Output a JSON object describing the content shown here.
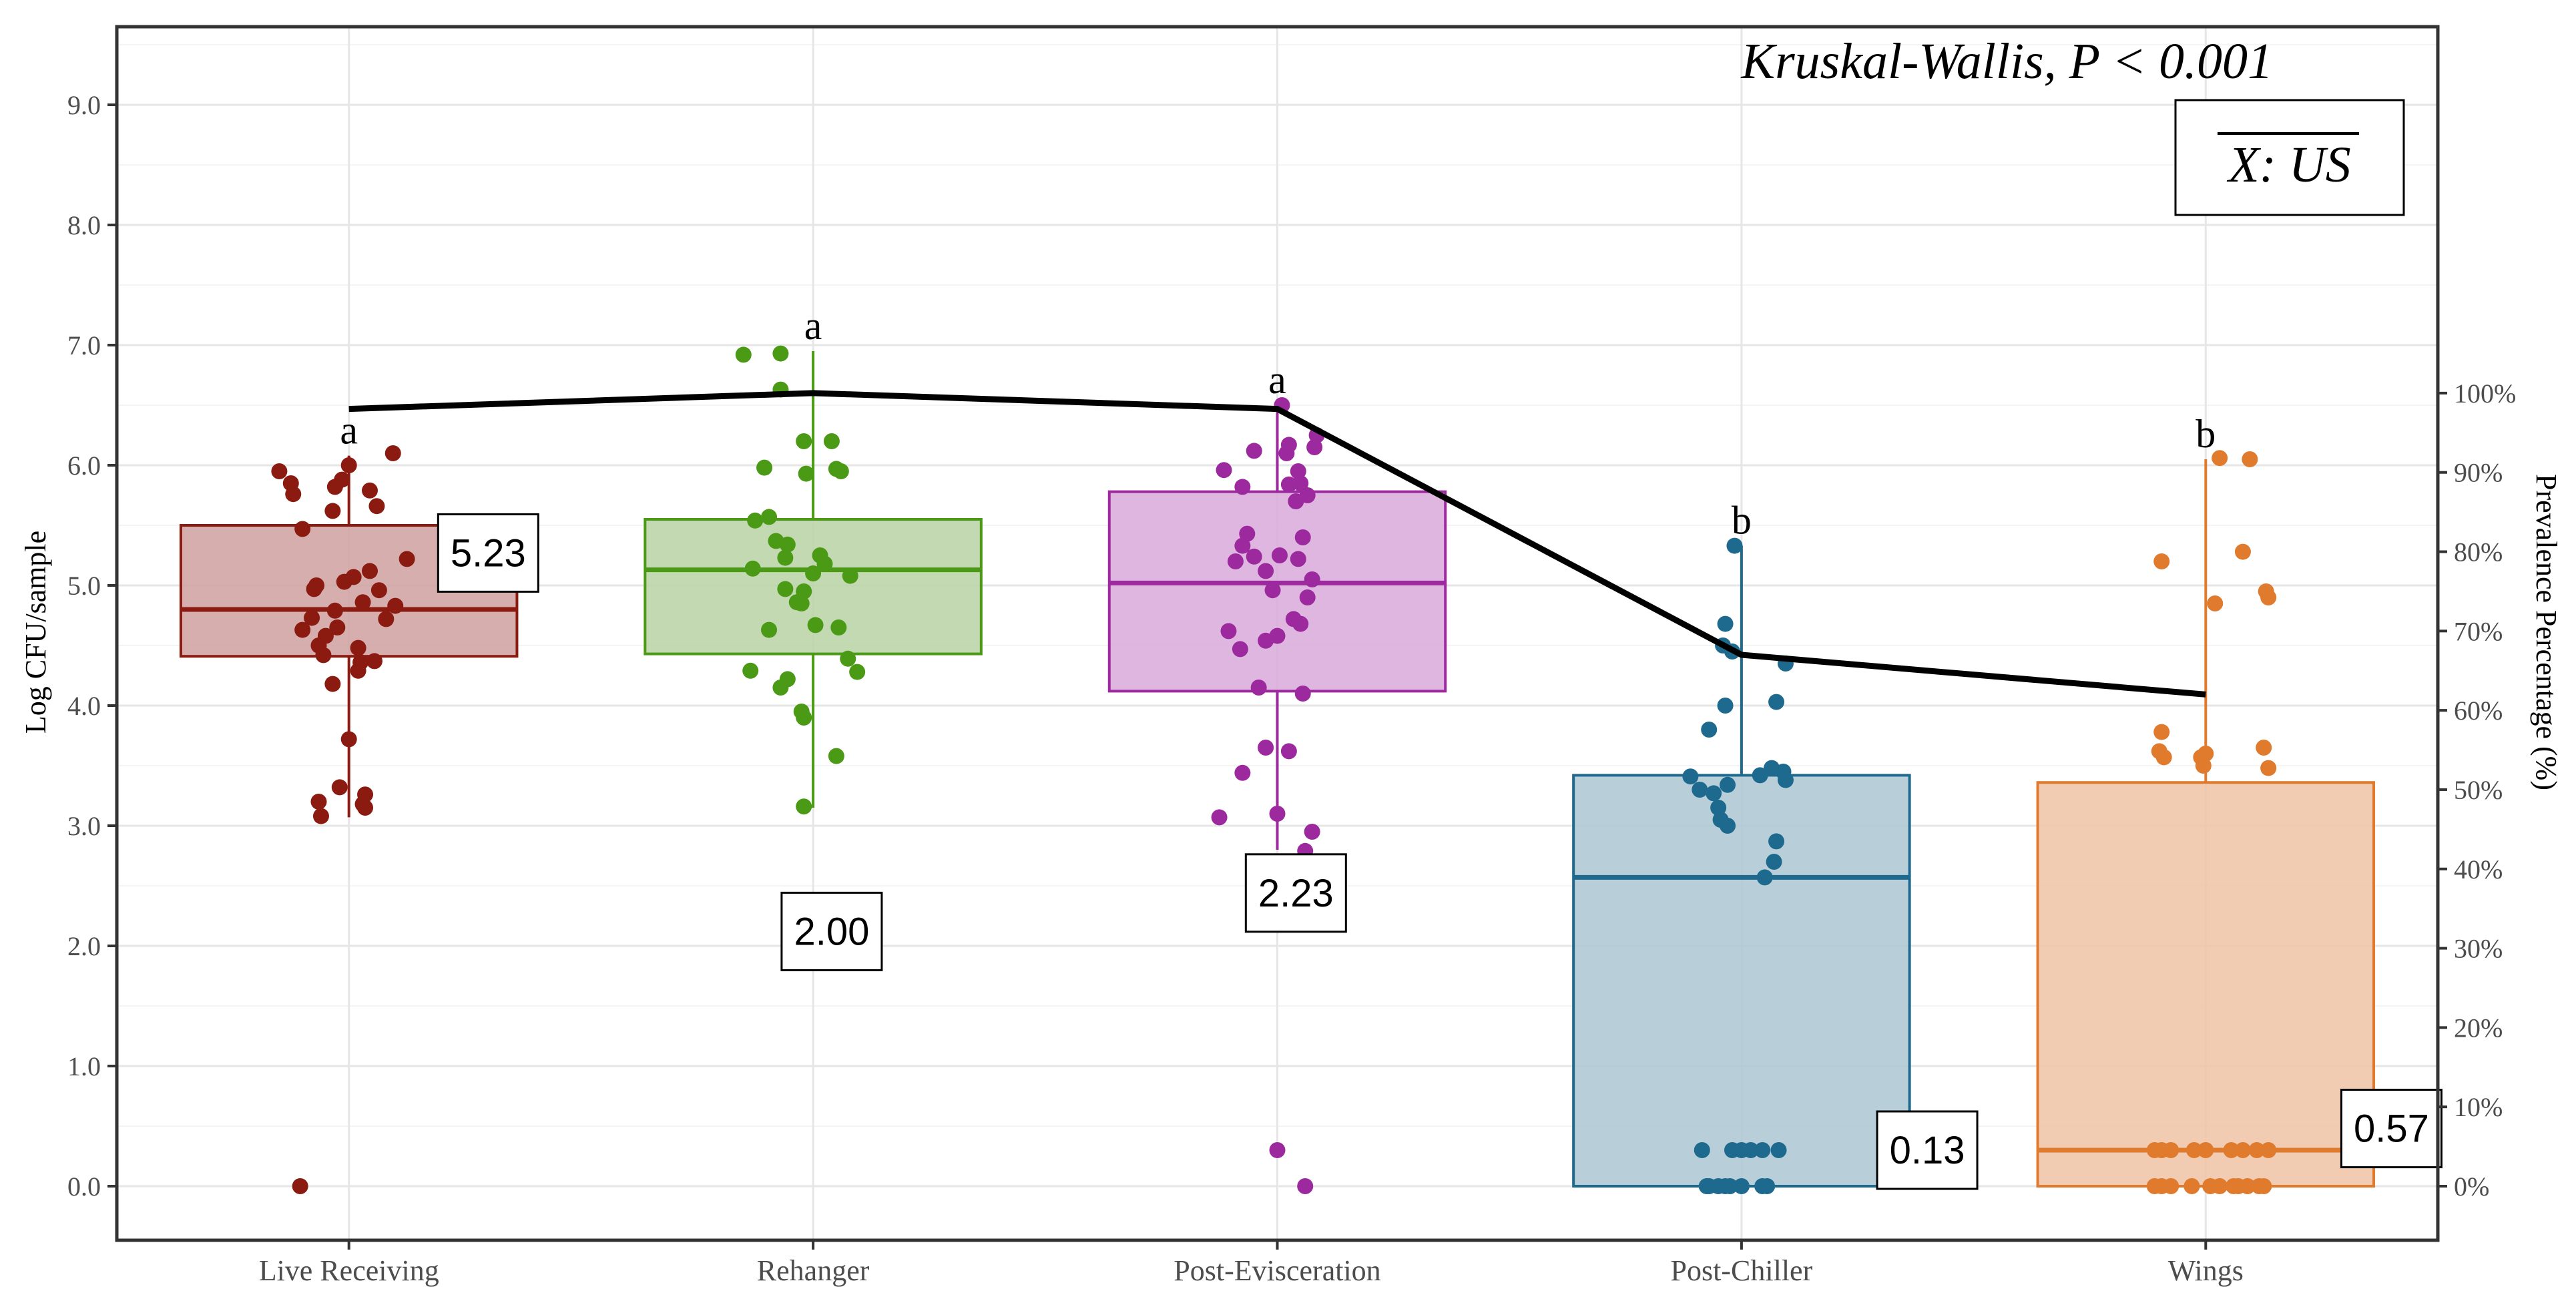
{
  "chart_data": {
    "type": "box",
    "title": "",
    "annotation": "Kruskal-Wallis, P < 0.001",
    "legend_label": "X: US",
    "ylabel_left": "Log CFU/sample",
    "ylabel_right": "Prevalence Percentage (%)",
    "ylim_left": [
      -0.45,
      9.65
    ],
    "ylim_right": [
      -6.818,
      146.2
    ],
    "yticks_left": [
      "0.0",
      "1.0",
      "2.0",
      "3.0",
      "4.0",
      "5.0",
      "6.0",
      "7.0",
      "8.0",
      "9.0"
    ],
    "yticks_right": [
      "0%",
      "10%",
      "20%",
      "30%",
      "40%",
      "50%",
      "60%",
      "70%",
      "80%",
      "90%",
      "100%"
    ],
    "categories": [
      "Live Receiving",
      "Rehanger",
      "Post-Evisceration",
      "Post-Chiller",
      "Wings"
    ],
    "colors": [
      "#8B1A10",
      "#4A9A16",
      "#9C2A9E",
      "#1E6A8E",
      "#E07A2C"
    ],
    "fills": [
      "#CFA0A0",
      "#B8D2A5",
      "#D9A9D9",
      "#ABC7D4",
      "#EEC3A6"
    ],
    "boxes": [
      {
        "name": "Live Receiving",
        "q1": 4.41,
        "median": 4.8,
        "q3": 5.5,
        "whisker_low": 3.07,
        "whisker_high": 6.08,
        "letter": "a",
        "label": "5.23",
        "prevalence": 98
      },
      {
        "name": "Rehanger",
        "q1": 4.43,
        "median": 5.13,
        "q3": 5.55,
        "whisker_low": 3.15,
        "whisker_high": 6.95,
        "letter": "a",
        "label": "2.00",
        "prevalence": 100
      },
      {
        "name": "Post-Evisceration",
        "q1": 4.12,
        "median": 5.02,
        "q3": 5.78,
        "whisker_low": 2.8,
        "whisker_high": 6.5,
        "letter": "a",
        "label": "2.23",
        "prevalence": 98
      },
      {
        "name": "Post-Chiller",
        "q1": 0.0,
        "median": 2.57,
        "q3": 3.42,
        "whisker_low": 0.0,
        "whisker_high": 5.33,
        "letter": "b",
        "label": "0.13",
        "prevalence": 67
      },
      {
        "name": "Wings",
        "q1": 0.0,
        "median": 0.3,
        "q3": 3.36,
        "whisker_low": 0.0,
        "whisker_high": 6.05,
        "letter": "b",
        "label": "0.57",
        "prevalence": 62
      }
    ],
    "points": [
      [
        [
          -0.3,
          5.95
        ],
        [
          -0.25,
          5.85
        ],
        [
          -0.24,
          5.76
        ],
        [
          0.0,
          6.0
        ],
        [
          0.09,
          5.79
        ],
        [
          0.19,
          6.1
        ],
        [
          -0.2,
          5.47
        ],
        [
          -0.14,
          5.0
        ],
        [
          -0.07,
          5.62
        ],
        [
          -0.06,
          5.82
        ],
        [
          -0.03,
          5.88
        ],
        [
          0.12,
          5.66
        ],
        [
          0.25,
          5.22
        ],
        [
          -0.16,
          4.73
        ],
        [
          -0.13,
          4.5
        ],
        [
          -0.11,
          4.42
        ],
        [
          -0.05,
          4.65
        ],
        [
          -0.02,
          5.03
        ],
        [
          0.02,
          5.07
        ],
        [
          0.06,
          4.86
        ],
        [
          0.09,
          5.12
        ],
        [
          0.13,
          4.96
        ],
        [
          0.2,
          4.83
        ],
        [
          0.16,
          4.72
        ],
        [
          -0.2,
          4.63
        ],
        [
          -0.15,
          4.97
        ],
        [
          -0.1,
          4.58
        ],
        [
          -0.06,
          4.79
        ],
        [
          0.04,
          4.48
        ],
        [
          0.11,
          4.37
        ],
        [
          -0.07,
          4.18
        ],
        [
          0.04,
          4.29
        ],
        [
          0.05,
          4.36
        ],
        [
          0.0,
          3.72
        ],
        [
          0.07,
          3.26
        ],
        [
          -0.04,
          3.32
        ],
        [
          0.06,
          3.18
        ],
        [
          -0.13,
          3.2
        ],
        [
          -0.12,
          3.08
        ],
        [
          0.07,
          3.15
        ],
        [
          -0.21,
          0.0
        ]
      ],
      [
        [
          -0.3,
          6.92
        ],
        [
          -0.14,
          6.93
        ],
        [
          -0.14,
          6.63
        ],
        [
          -0.04,
          6.2
        ],
        [
          0.08,
          6.2
        ],
        [
          -0.21,
          5.98
        ],
        [
          -0.03,
          5.93
        ],
        [
          0.1,
          5.97
        ],
        [
          0.12,
          5.95
        ],
        [
          -0.25,
          5.54
        ],
        [
          -0.19,
          5.57
        ],
        [
          -0.16,
          5.37
        ],
        [
          -0.11,
          5.34
        ],
        [
          -0.12,
          5.23
        ],
        [
          0.03,
          5.25
        ],
        [
          0.05,
          5.18
        ],
        [
          -0.26,
          5.14
        ],
        [
          -0.12,
          4.97
        ],
        [
          -0.07,
          4.86
        ],
        [
          0.0,
          5.1
        ],
        [
          0.16,
          5.08
        ],
        [
          -0.04,
          4.95
        ],
        [
          -0.05,
          4.85
        ],
        [
          -0.19,
          4.63
        ],
        [
          0.01,
          4.67
        ],
        [
          0.11,
          4.65
        ],
        [
          0.15,
          4.39
        ],
        [
          0.19,
          4.28
        ],
        [
          -0.27,
          4.29
        ],
        [
          -0.14,
          4.15
        ],
        [
          -0.11,
          4.22
        ],
        [
          -0.05,
          3.95
        ],
        [
          -0.04,
          3.9
        ],
        [
          0.1,
          3.58
        ],
        [
          -0.04,
          3.16
        ]
      ],
      [
        [
          0.02,
          6.5
        ],
        [
          0.17,
          6.25
        ],
        [
          0.16,
          6.15
        ],
        [
          0.05,
          6.17
        ],
        [
          0.04,
          6.1
        ],
        [
          -0.23,
          5.96
        ],
        [
          -0.1,
          6.12
        ],
        [
          0.09,
          5.95
        ],
        [
          0.1,
          5.85
        ],
        [
          -0.15,
          5.82
        ],
        [
          0.05,
          5.84
        ],
        [
          0.13,
          5.75
        ],
        [
          0.08,
          5.7
        ],
        [
          -0.13,
          5.43
        ],
        [
          -0.15,
          5.33
        ],
        [
          0.11,
          5.4
        ],
        [
          -0.18,
          5.2
        ],
        [
          -0.1,
          5.24
        ],
        [
          0.01,
          5.25
        ],
        [
          0.09,
          5.22
        ],
        [
          -0.05,
          5.12
        ],
        [
          0.15,
          5.05
        ],
        [
          0.13,
          4.9
        ],
        [
          -0.02,
          4.96
        ],
        [
          0.07,
          4.72
        ],
        [
          0.1,
          4.68
        ],
        [
          -0.21,
          4.62
        ],
        [
          0.0,
          4.58
        ],
        [
          -0.16,
          4.47
        ],
        [
          -0.05,
          4.54
        ],
        [
          -0.08,
          4.15
        ],
        [
          0.11,
          4.1
        ],
        [
          -0.05,
          3.65
        ],
        [
          0.05,
          3.62
        ],
        [
          -0.15,
          3.44
        ],
        [
          -0.25,
          3.07
        ],
        [
          0.0,
          3.1
        ],
        [
          0.15,
          2.95
        ],
        [
          0.12,
          2.79
        ],
        [
          0.0,
          0.3
        ],
        [
          0.12,
          0.0
        ]
      ],
      [
        [
          -0.03,
          5.33
        ],
        [
          0.19,
          4.35
        ],
        [
          -0.07,
          4.68
        ],
        [
          -0.08,
          4.5
        ],
        [
          -0.04,
          4.45
        ],
        [
          0.15,
          4.03
        ],
        [
          -0.07,
          4.0
        ],
        [
          -0.14,
          3.8
        ],
        [
          0.13,
          3.48
        ],
        [
          0.18,
          3.45
        ],
        [
          0.19,
          3.38
        ],
        [
          0.08,
          3.42
        ],
        [
          -0.22,
          3.41
        ],
        [
          -0.18,
          3.3
        ],
        [
          -0.12,
          3.27
        ],
        [
          -0.1,
          3.15
        ],
        [
          -0.06,
          3.34
        ],
        [
          -0.09,
          3.05
        ],
        [
          -0.06,
          3.0
        ],
        [
          0.15,
          2.87
        ],
        [
          0.14,
          2.7
        ],
        [
          0.1,
          2.57
        ],
        [
          -0.17,
          0.3
        ],
        [
          0.04,
          0.3
        ],
        [
          0.09,
          0.3
        ],
        [
          0.16,
          0.3
        ],
        [
          -0.15,
          0.0
        ],
        [
          -0.14,
          0.0
        ],
        [
          -0.1,
          0.0
        ],
        [
          -0.07,
          0.0
        ],
        [
          -0.05,
          0.0
        ],
        [
          0.0,
          0.0
        ],
        [
          0.09,
          0.0
        ],
        [
          0.11,
          0.0
        ],
        [
          -0.04,
          0.3
        ],
        [
          0.0,
          0.3
        ]
      ],
      [
        [
          0.06,
          6.06
        ],
        [
          0.19,
          6.05
        ],
        [
          -0.19,
          5.2
        ],
        [
          0.16,
          5.28
        ],
        [
          0.04,
          4.85
        ],
        [
          0.27,
          4.9
        ],
        [
          0.26,
          4.95
        ],
        [
          -0.19,
          3.78
        ],
        [
          0.25,
          3.65
        ],
        [
          0.27,
          3.48
        ],
        [
          -0.2,
          3.62
        ],
        [
          -0.18,
          3.57
        ],
        [
          -0.02,
          3.57
        ],
        [
          -0.01,
          3.5
        ],
        [
          0.0,
          3.6
        ],
        [
          -0.22,
          0.3
        ],
        [
          -0.19,
          0.3
        ],
        [
          -0.15,
          0.3
        ],
        [
          -0.05,
          0.3
        ],
        [
          0.0,
          0.3
        ],
        [
          0.11,
          0.3
        ],
        [
          0.16,
          0.3
        ],
        [
          0.22,
          0.3
        ],
        [
          0.27,
          0.3
        ],
        [
          -0.22,
          0.0
        ],
        [
          -0.19,
          0.0
        ],
        [
          -0.15,
          0.0
        ],
        [
          -0.06,
          0.0
        ],
        [
          0.02,
          0.0
        ],
        [
          0.06,
          0.0
        ],
        [
          0.12,
          0.0
        ],
        [
          0.14,
          0.0
        ],
        [
          0.23,
          0.0
        ],
        [
          0.25,
          0.0
        ],
        [
          0.18,
          0.0
        ]
      ]
    ]
  }
}
